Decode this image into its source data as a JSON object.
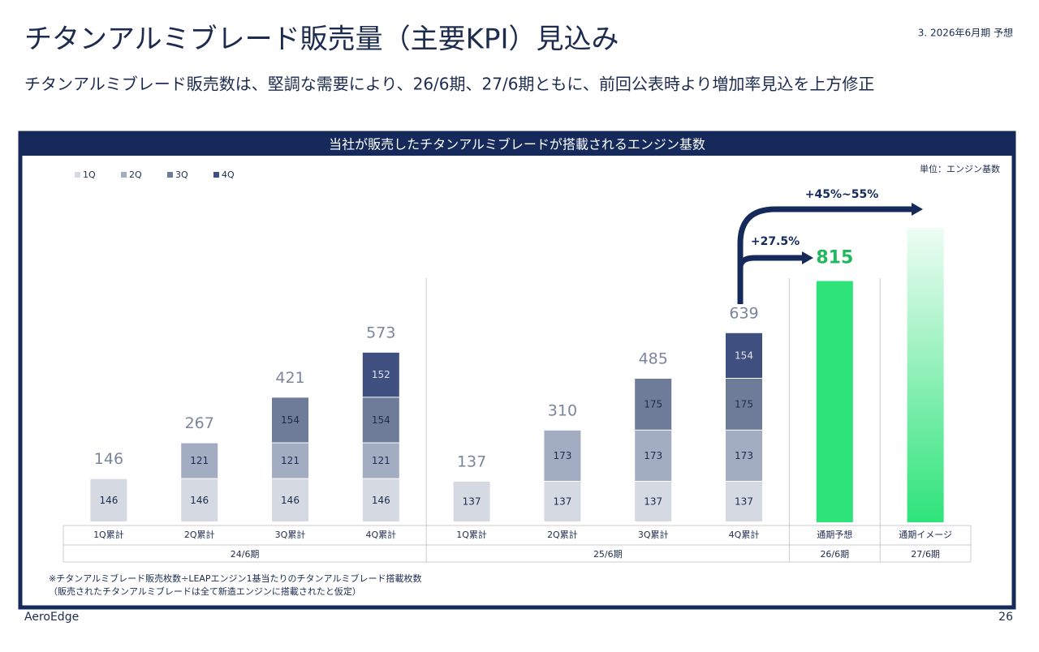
{
  "header": {
    "title": "チタンアルミブレード販売量（主要KPI）見込み",
    "section": "3. 2026年6月期 予想",
    "subtitle": "チタンアルミブレード販売数は、堅調な需要により、26/6期、27/6期ともに、前回公表時より増加率見込を上方修正"
  },
  "chart_data": {
    "type": "bar",
    "stacked": true,
    "title": "当社が販売したチタンアルミブレードが搭載されるエンジン基数",
    "unit_label": "単位：エンジン基数",
    "categories": [
      "1Q累計",
      "2Q累計",
      "3Q累計",
      "4Q累計",
      "1Q累計",
      "2Q累計",
      "3Q累計",
      "4Q累計",
      "通期予想",
      "通期イメージ"
    ],
    "category_groups": [
      "24/6期",
      "24/6期",
      "24/6期",
      "24/6期",
      "25/6期",
      "25/6期",
      "25/6期",
      "25/6期",
      "26/6期",
      "27/6期"
    ],
    "series": [
      {
        "name": "1Q",
        "color": "#d5d9e2",
        "label_color": "#1d2b4f",
        "values": [
          146,
          146,
          146,
          146,
          137,
          137,
          137,
          137,
          null,
          null
        ]
      },
      {
        "name": "2Q",
        "color": "#a3adc2",
        "label_color": "#1d2b4f",
        "values": [
          null,
          121,
          121,
          121,
          null,
          173,
          173,
          173,
          null,
          null
        ]
      },
      {
        "name": "3Q",
        "color": "#6e7c9a",
        "label_color": "#1d2b4f",
        "values": [
          null,
          null,
          154,
          154,
          null,
          null,
          175,
          175,
          null,
          null
        ]
      },
      {
        "name": "4Q",
        "color": "#3f5080",
        "label_color": "#dfe3ec",
        "values": [
          null,
          null,
          null,
          152,
          null,
          null,
          null,
          154,
          null,
          null
        ]
      }
    ],
    "totals": [
      146,
      267,
      421,
      573,
      137,
      310,
      485,
      639,
      null,
      null
    ],
    "forecast": {
      "color": "#2ee37a",
      "values": [
        null,
        null,
        null,
        null,
        null,
        null,
        null,
        null,
        815,
        995
      ],
      "fade": [
        null,
        null,
        null,
        null,
        null,
        null,
        null,
        null,
        false,
        true
      ]
    },
    "ylim": [
      0,
      1000
    ],
    "annotations": {
      "growth_26": "+27.5%",
      "growth_27": "+45%~55%"
    },
    "footnotes": [
      "※チタンアルミブレード販売枚数÷LEAPエンジン1基当たりのチタンアルミブレード搭載枚数",
      "（販売されたチタンアルミブレードは全て新造エンジンに搭載されたと仮定）"
    ]
  },
  "footer": {
    "company": "AeroEdge",
    "page": "26"
  }
}
